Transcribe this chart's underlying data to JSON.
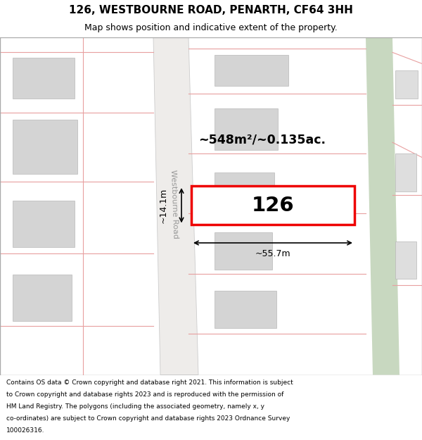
{
  "title": "126, WESTBOURNE ROAD, PENARTH, CF64 3HH",
  "subtitle": "Map shows position and indicative extent of the property.",
  "footer_lines": [
    "Contains OS data © Crown copyright and database right 2021. This information is subject",
    "to Crown copyright and database rights 2023 and is reproduced with the permission of",
    "HM Land Registry. The polygons (including the associated geometry, namely x, y",
    "co-ordinates) are subject to Crown copyright and database rights 2023 Ordnance Survey",
    "100026316."
  ],
  "area_label": "~548m²/~0.135ac.",
  "width_label": "~55.7m",
  "height_label": "~14.1m",
  "property_number": "126",
  "road_label": "Westbourne Road",
  "map_bg": "#f7f5f2",
  "road_fill": "#eeecea",
  "plot_outline_color": "#e8a0a0",
  "building_fill": "#d4d4d4",
  "building_outline": "#b8b8b8",
  "highlight_fill": "#ffffff",
  "highlight_outline": "#ee0000",
  "green_strip_color": "#c8d8c0",
  "dim_line_color": "#000000",
  "text_color": "#000000",
  "road_text_color": "#999999"
}
